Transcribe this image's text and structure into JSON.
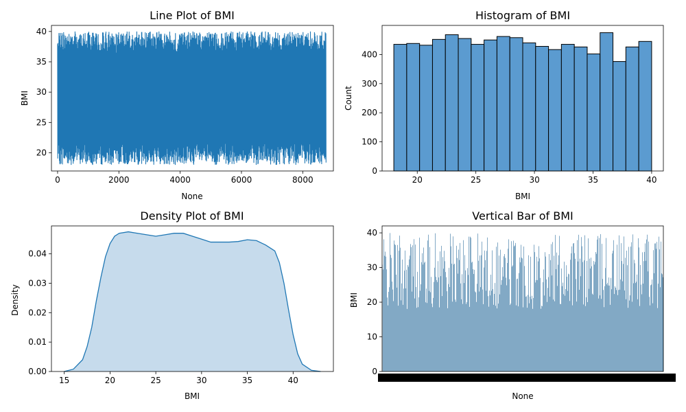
{
  "chart_data": [
    {
      "type": "line",
      "title": "Line Plot of BMI",
      "xlabel": "None",
      "ylabel": "BMI",
      "xlim": [
        -200,
        9000
      ],
      "ylim": [
        17,
        41
      ],
      "x_ticks": [
        0,
        2000,
        4000,
        6000,
        8000
      ],
      "y_ticks": [
        20,
        25,
        30,
        35,
        40
      ],
      "series": [
        {
          "x_range": [
            0,
            8760
          ],
          "y_band_min": 18.0,
          "y_band_max": 40.0,
          "color": "#1f77b4"
        }
      ]
    },
    {
      "type": "bar",
      "subtype": "histogram",
      "title": "Histogram of BMI",
      "xlabel": "BMI",
      "ylabel": "Count",
      "xlim": [
        17,
        41
      ],
      "ylim": [
        0,
        500
      ],
      "x_ticks": [
        20,
        25,
        30,
        35,
        40
      ],
      "y_ticks": [
        0,
        100,
        200,
        300,
        400
      ],
      "bin_edges": [
        18.0,
        19.1,
        20.2,
        21.3,
        22.4,
        23.5,
        24.6,
        25.7,
        26.8,
        27.9,
        29.0,
        30.1,
        31.2,
        32.3,
        33.4,
        34.5,
        35.6,
        36.7,
        37.8,
        38.9,
        40.0
      ],
      "values": [
        435,
        438,
        432,
        452,
        468,
        455,
        435,
        450,
        462,
        458,
        440,
        428,
        417,
        435,
        426,
        402,
        475,
        376,
        426,
        445
      ],
      "color": "#5b9bd0"
    },
    {
      "type": "area",
      "title": "Density Plot of BMI",
      "xlabel": "BMI",
      "ylabel": "Density",
      "xlim": [
        13.6,
        44.4
      ],
      "ylim": [
        0,
        0.0495
      ],
      "x_ticks": [
        15,
        20,
        25,
        30,
        35,
        40
      ],
      "y_ticks": [
        0.0,
        0.01,
        0.02,
        0.03,
        0.04
      ],
      "y_tick_labels": [
        "0.00",
        "0.01",
        "0.02",
        "0.03",
        "0.04"
      ],
      "x": [
        15.0,
        16.0,
        17.0,
        17.5,
        18.0,
        18.5,
        19.0,
        19.5,
        20.0,
        20.5,
        21.0,
        22.0,
        23.0,
        24.0,
        25.0,
        26.0,
        27.0,
        28.0,
        29.0,
        30.0,
        31.0,
        32.0,
        33.0,
        34.0,
        35.0,
        36.0,
        37.0,
        38.0,
        38.5,
        39.0,
        39.5,
        40.0,
        40.5,
        41.0,
        42.0,
        43.0
      ],
      "y": [
        0.0,
        0.0008,
        0.004,
        0.0085,
        0.015,
        0.024,
        0.032,
        0.039,
        0.0435,
        0.046,
        0.047,
        0.0475,
        0.047,
        0.0465,
        0.046,
        0.0465,
        0.047,
        0.047,
        0.046,
        0.045,
        0.044,
        0.044,
        0.044,
        0.0442,
        0.0448,
        0.0445,
        0.043,
        0.041,
        0.037,
        0.03,
        0.021,
        0.0125,
        0.006,
        0.0025,
        0.0004,
        0.0
      ],
      "color": "#1f77b4",
      "fill": "#c6dbec"
    },
    {
      "type": "bar",
      "title": "Vertical Bar of BMI",
      "xlabel": "None",
      "ylabel": "BMI",
      "ylim": [
        0,
        42
      ],
      "y_ticks": [
        0,
        10,
        20,
        30,
        40
      ],
      "n_bars": 8760,
      "value_range": [
        18.0,
        40.0
      ],
      "color": "#2e6f9e"
    }
  ]
}
